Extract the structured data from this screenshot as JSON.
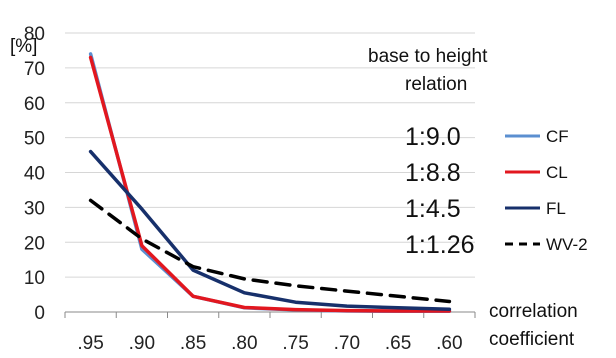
{
  "chart_data": {
    "type": "line",
    "ylabel": "[%]",
    "xlabel": "correlation coefficient",
    "xlabel_lines": [
      "correlation",
      "coefficient"
    ],
    "annotation_lines": [
      "base to height",
      "relation"
    ],
    "categories": [
      ".95",
      ".90",
      ".85",
      ".80",
      ".75",
      ".70",
      ".65",
      ".60"
    ],
    "ylim": [
      0,
      80
    ],
    "yticks": [
      "0",
      "10",
      "20",
      "30",
      "40",
      "50",
      "60",
      "70",
      "80"
    ],
    "grid": true,
    "series": [
      {
        "name": "CF",
        "ratio": "1:9.0",
        "color": "#5b8fd0",
        "dash": "solid",
        "values": [
          74,
          18,
          4.5,
          1.2,
          0.6,
          0.3,
          0.2,
          0.2
        ]
      },
      {
        "name": "CL",
        "ratio": "1:8.8",
        "color": "#e2171f",
        "dash": "solid",
        "values": [
          73,
          19,
          4.5,
          1.3,
          0.7,
          0.4,
          0.3,
          0.3
        ]
      },
      {
        "name": "FL",
        "ratio": "1:4.5",
        "color": "#17306b",
        "dash": "solid",
        "values": [
          46,
          29.5,
          12,
          5.5,
          2.8,
          1.7,
          1.2,
          0.8
        ]
      },
      {
        "name": "WV-2",
        "ratio": "1:1.26",
        "color": "#000000",
        "dash": "dashed",
        "values": [
          32,
          21,
          13,
          9.5,
          7.5,
          6,
          4.5,
          3
        ]
      }
    ]
  }
}
